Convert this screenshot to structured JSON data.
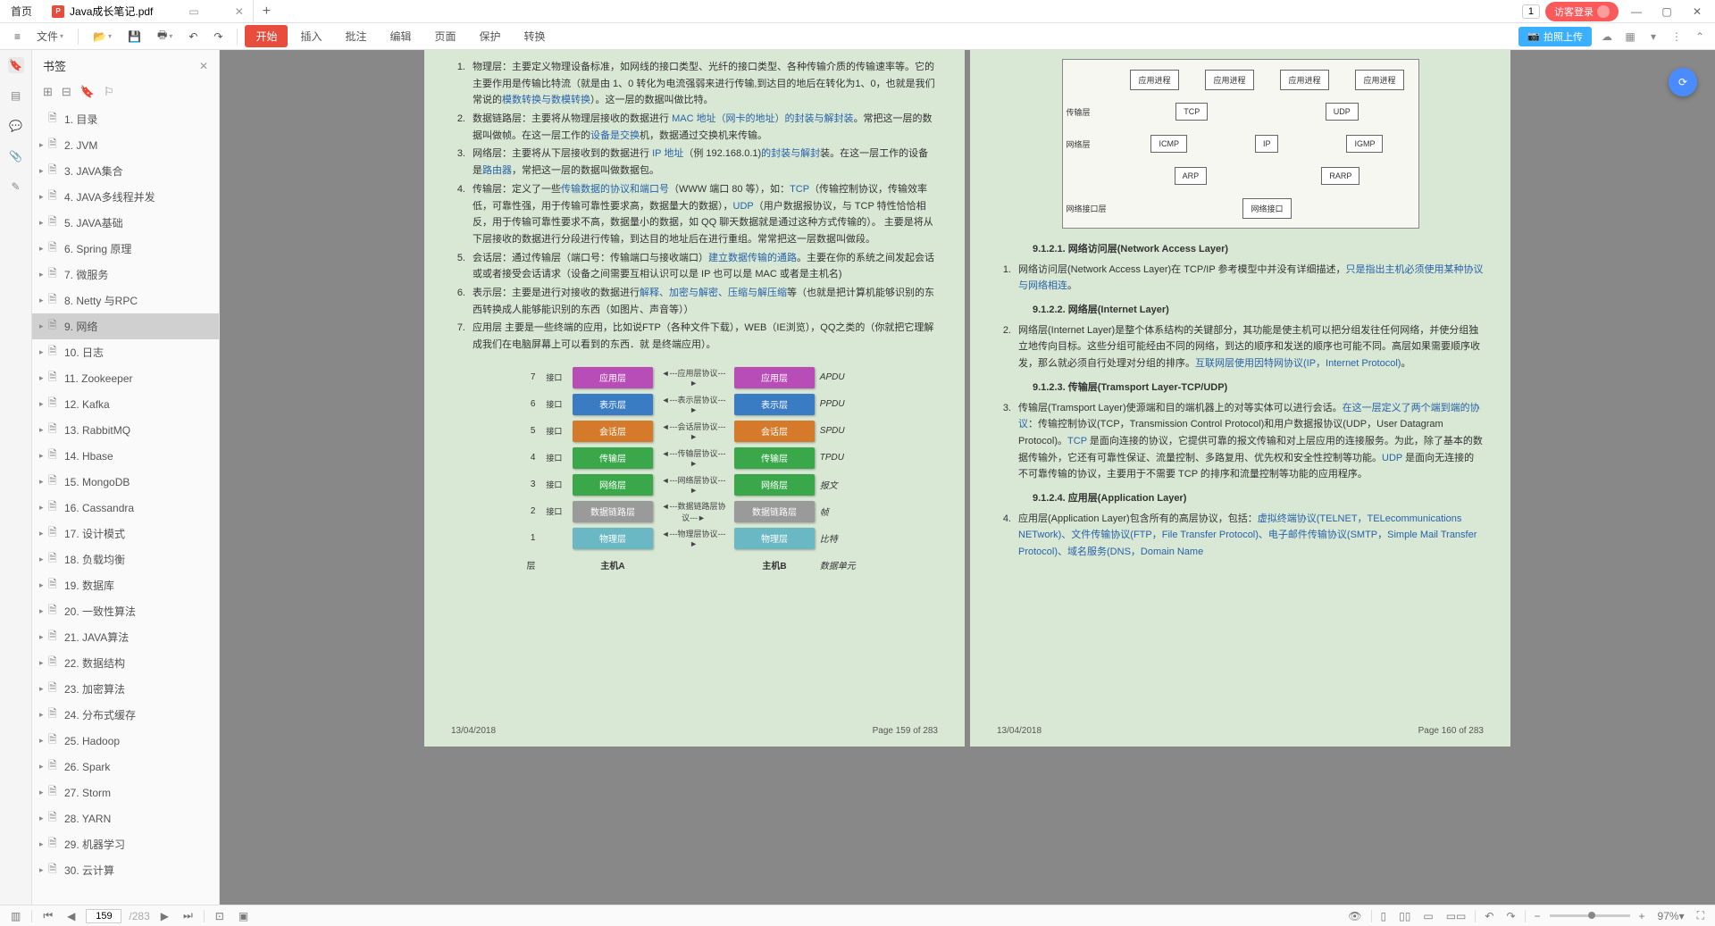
{
  "titlebar": {
    "home_tab": "首页",
    "file_tab": "Java成长笔记.pdf",
    "pdf_badge": "P",
    "add": "+",
    "badge_num": "1",
    "login": "访客登录",
    "minimize": "—",
    "maximize": "▢",
    "close": "✕"
  },
  "menubar": {
    "hamburger": "≡",
    "file": "文件",
    "tabs": [
      "开始",
      "插入",
      "批注",
      "编辑",
      "页面",
      "保护",
      "转换"
    ],
    "upload": "拍照上传",
    "more": "⋮"
  },
  "leftbar": {
    "icons": [
      "bookmark",
      "thumbnail",
      "comment",
      "attachment",
      "signature"
    ]
  },
  "bookmarks": {
    "title": "书签",
    "items": [
      {
        "label": "1. 目录",
        "expand": false
      },
      {
        "label": "2. JVM",
        "expand": true
      },
      {
        "label": "3. JAVA集合",
        "expand": true
      },
      {
        "label": "4. JAVA多线程并发",
        "expand": true
      },
      {
        "label": "5. JAVA基础",
        "expand": true
      },
      {
        "label": "6. Spring 原理",
        "expand": true
      },
      {
        "label": "7.  微服务",
        "expand": true
      },
      {
        "label": "8. Netty 与RPC",
        "expand": true
      },
      {
        "label": "9. 网络",
        "expand": true,
        "active": true
      },
      {
        "label": "10. 日志",
        "expand": true
      },
      {
        "label": "11. Zookeeper",
        "expand": true
      },
      {
        "label": "12. Kafka",
        "expand": true
      },
      {
        "label": "13. RabbitMQ",
        "expand": true
      },
      {
        "label": "14. Hbase",
        "expand": true
      },
      {
        "label": "15. MongoDB",
        "expand": true
      },
      {
        "label": "16. Cassandra",
        "expand": true
      },
      {
        "label": "17. 设计模式",
        "expand": true
      },
      {
        "label": "18. 负载均衡",
        "expand": true
      },
      {
        "label": "19. 数据库",
        "expand": true
      },
      {
        "label": "20. 一致性算法",
        "expand": true
      },
      {
        "label": "21. JAVA算法",
        "expand": true
      },
      {
        "label": "22. 数据结构",
        "expand": true
      },
      {
        "label": "23. 加密算法",
        "expand": true
      },
      {
        "label": "24. 分布式缓存",
        "expand": true
      },
      {
        "label": "25. Hadoop",
        "expand": true
      },
      {
        "label": "26. Spark",
        "expand": true
      },
      {
        "label": "27. Storm",
        "expand": true
      },
      {
        "label": "28. YARN",
        "expand": true
      },
      {
        "label": "29. 机器学习",
        "expand": true
      },
      {
        "label": "30. 云计算",
        "expand": true
      }
    ]
  },
  "page159": {
    "items": [
      {
        "n": "1.",
        "pre": "物理层：主要定义物理设备标准，如网线的接口类型、光纤的接口类型、各种传输介质的传输速率等。它的主要作用是传输比特流（就是由 1、0 转化为电流强弱来进行传输,到达目的地后在转化为1、0，也就是我们常说的",
        "link": "模数转换与数模转换",
        "post": "）。这一层的数据叫做比特。"
      },
      {
        "n": "2.",
        "pre": "数据链路层：主要将从物理层接收的数据进行 ",
        "link": "MAC 地址（网卡的地址）的封装与解封装",
        "post": "。常把这一层的数据叫做帧。在这一层工作的",
        "link2": "设备是交换",
        "post2": "机，数据通过交换机来传输。"
      },
      {
        "n": "3.",
        "pre": "网络层：主要将从下层接收到的数据进行 ",
        "link": "IP 地址",
        "post": "（例 192.168.0.1)",
        "link2": "的封装与解封",
        "post2": "装。在这一层工作的设备是",
        "link3": "路由器",
        "post3": "，常把这一层的数据叫做数据包。"
      },
      {
        "n": "4.",
        "pre": "传输层：定义了一些",
        "link": "传输数据的协议和端口号",
        "post": "（WWW 端口 80 等），如：",
        "link2": "TCP",
        "post2": "（传输控制协议，传输效率低，可靠性强，用于传输可靠性要求高，数据量大的数据），",
        "link3": "UDP",
        "post3": "（用户数据报协议，与 TCP 特性恰恰相反，用于传输可靠性要求不高，数据量小的数据，如 QQ 聊天数据就是通过这种方式传输的）。 主要是将从下层接收的数据进行分段进行传输，到达目的地址后在进行重组。常常把这一层数据叫做段。"
      },
      {
        "n": "5.",
        "pre": "会话层：通过传输层（端口号：传输端口与接收端口）",
        "link": "建立数据传输的通路",
        "post": "。主要在你的系统之间发起会话或或者接受会话请求（设备之间需要互相认识可以是 IP 也可以是 MAC 或者是主机名)"
      },
      {
        "n": "6.",
        "pre": "表示层：主要是进行对接收的数据进行",
        "link": "解释、加密与解密、压缩与解压缩",
        "post": "等（也就是把计算机能够识别的东西转换成人能够能识别的东西（如图片、声音等））"
      },
      {
        "n": "7.",
        "pre": "应用层 主要是一些终端的应用，比如说FTP（各种文件下载），WEB（IE浏览），QQ之类的（你就把它理解成我们在电脑屏幕上可以看到的东西．就 是终端应用）。",
        "link": "",
        "post": ""
      }
    ],
    "osi": {
      "rows": [
        {
          "n": "7",
          "if": "接口",
          "box": "应用层",
          "proto": "应用层协议",
          "box2": "应用层",
          "unit": "APDU",
          "c": "#b84db8"
        },
        {
          "n": "6",
          "if": "接口",
          "box": "表示层",
          "proto": "表示层协议",
          "box2": "表示层",
          "unit": "PPDU",
          "c": "#3a7cc4"
        },
        {
          "n": "5",
          "if": "接口",
          "box": "会话层",
          "proto": "会话层协议",
          "box2": "会话层",
          "unit": "SPDU",
          "c": "#d47a2a"
        },
        {
          "n": "4",
          "if": "接口",
          "box": "传输层",
          "proto": "传输层协议",
          "box2": "传输层",
          "unit": "TPDU",
          "c": "#3aa84a"
        },
        {
          "n": "3",
          "if": "接口",
          "box": "网络层",
          "proto": "网络层协议",
          "box2": "网络层",
          "unit": "报文",
          "c": "#3aa84a"
        },
        {
          "n": "2",
          "if": "接口",
          "box": "数据链路层",
          "proto": "数据链路层协议",
          "box2": "数据链路层",
          "unit": "帧",
          "c": "#9a9a9a"
        },
        {
          "n": "1",
          "if": "",
          "box": "物理层",
          "proto": "物理层协议",
          "box2": "物理层",
          "unit": "比特",
          "c": "#6ab8c4"
        }
      ],
      "layer_label": "层",
      "hostA": "主机A",
      "hostB": "主机B",
      "data_unit": "数据单元"
    },
    "date": "13/04/2018",
    "pagenum": "Page 159 of 283"
  },
  "page160": {
    "tcp": {
      "rows": [
        {
          "label": "",
          "boxes": [
            "应用进程",
            "应用进程",
            "应用进程",
            "应用进程"
          ]
        },
        {
          "label": "传输层",
          "boxes": [
            "TCP",
            "UDP"
          ]
        },
        {
          "label": "网络层",
          "boxes": [
            "ICMP",
            "IP",
            "IGMP"
          ]
        },
        {
          "label": "",
          "boxes": [
            "ARP",
            "RARP"
          ]
        },
        {
          "label": "网络接口层",
          "boxes": [
            "网络接口"
          ]
        }
      ]
    },
    "sections": [
      {
        "num": "9.1.2.1.",
        "title": "网络访问层(Network Access Layer)",
        "idx": "1.",
        "pre": "网络访问层(Network Access Layer)在 TCP/IP 参考模型中并没有详细描述，",
        "link": "只是指出主机必须使用某种协议与网络相连",
        "post": "。"
      },
      {
        "num": "9.1.2.2.",
        "title": "网络层(Internet Layer)",
        "idx": "2.",
        "pre": "网络层(Internet Layer)是整个体系结构的关键部分，其功能是使主机可以把分组发往任何网络，并使分组独立地传向目标。这些分组可能经由不同的网络，到达的顺序和发送的顺序也可能不同。高层如果需要顺序收发，那么就必须自行处理对分组的排序。",
        "link": "互联网层使用因特网协议(IP，Internet Protocol)",
        "post": "。"
      },
      {
        "num": "9.1.2.3.",
        "title": "传输层(Tramsport Layer-TCP/UDP)",
        "idx": "3.",
        "pre": "传输层(Tramsport Layer)使源端和目的端机器上的对等实体可以进行会话。",
        "link": "在这一层定义了两个端到端的协议",
        "post": "：传输控制协议(TCP，Transmission Control Protocol)和用户数据报协议(UDP，User Datagram Protocol)。",
        "link2": "TCP ",
        "post2": "是面向连接的协议，它提供可靠的报文传输和对上层应用的连接服务。为此，除了基本的数据传输外，它还有可靠性保证、流量控制、多路复用、优先权和安全性控制等功能。",
        "link3": "UDP ",
        "post3": "是面向无连接的不可靠传输的协议，主要用于不需要 TCP 的排序和流量控制等功能的应用程序。"
      },
      {
        "num": "9.1.2.4.",
        "title": "应用层(Application Layer)",
        "idx": "4.",
        "pre": "应用层(Application Layer)包含所有的高层协议，包括：",
        "link": "虚拟终端协议(TELNET，TELecommunications NETwork)、文件传输协议(FTP，File Transfer Protocol)、电子邮件传输协议(SMTP，Simple Mail Transfer Protocol)、域名服务(DNS，Domain Name",
        "post": ""
      }
    ],
    "date": "13/04/2018",
    "pagenum": "Page 160 of 283"
  },
  "statusbar": {
    "page_current": "159",
    "page_total": "/283",
    "zoom": "97%"
  }
}
